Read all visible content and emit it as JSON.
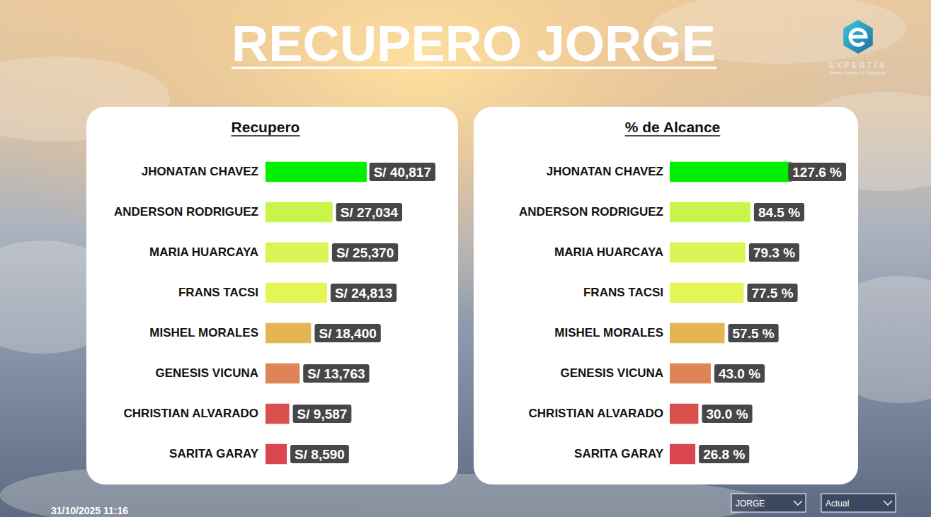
{
  "header": {
    "title": "RECUPERO JORGE",
    "logo_text": "EXPERTIS",
    "logo_subtitle": "Master Services & Collections",
    "timestamp": "31/10/2025 11:16"
  },
  "filters": [
    "JORGE",
    "Actual"
  ],
  "chart_data": [
    {
      "type": "bar",
      "orientation": "horizontal",
      "title": "Recupero",
      "categories": [
        "JHONATAN CHAVEZ",
        "ANDERSON RODRIGUEZ",
        "MARIA HUARCAYA",
        "FRANS TACSI",
        "MISHEL MORALES",
        "GENESIS VICUNA",
        "CHRISTIAN ALVARADO",
        "SARITA GARAY"
      ],
      "values": [
        40817,
        27034,
        25370,
        24813,
        18400,
        13763,
        9587,
        8590
      ],
      "value_labels": [
        "S/ 40,817",
        "S/ 27,034",
        "S/ 25,370",
        "S/ 24,813",
        "S/ 18,400",
        "S/ 13,763",
        "S/ 9,587",
        "S/ 8,590"
      ],
      "data_labels": true,
      "tick_labels": "y",
      "grid": false,
      "colors": [
        "#00f000",
        "#c8f54a",
        "#d8f553",
        "#e3f656",
        "#e3b653",
        "#df8456",
        "#d9514f",
        "#d9464e"
      ]
    },
    {
      "type": "bar",
      "orientation": "horizontal",
      "title": "% de Alcance",
      "categories": [
        "JHONATAN CHAVEZ",
        "ANDERSON RODRIGUEZ",
        "MARIA HUARCAYA",
        "FRANS TACSI",
        "MISHEL MORALES",
        "GENESIS VICUNA",
        "CHRISTIAN ALVARADO",
        "SARITA GARAY"
      ],
      "values": [
        127.6,
        84.5,
        79.3,
        77.5,
        57.5,
        43.0,
        30.0,
        26.8
      ],
      "value_labels": [
        "127.6 %",
        "84.5 %",
        "79.3 %",
        "77.5 %",
        "57.5 %",
        "43.0 %",
        "30.0 %",
        "26.8 %"
      ],
      "data_labels": true,
      "tick_labels": "y",
      "grid": false,
      "colors": [
        "#00f000",
        "#c8f54a",
        "#d8f553",
        "#e3f656",
        "#e3b653",
        "#df8456",
        "#d9514f",
        "#d9464e"
      ]
    }
  ]
}
